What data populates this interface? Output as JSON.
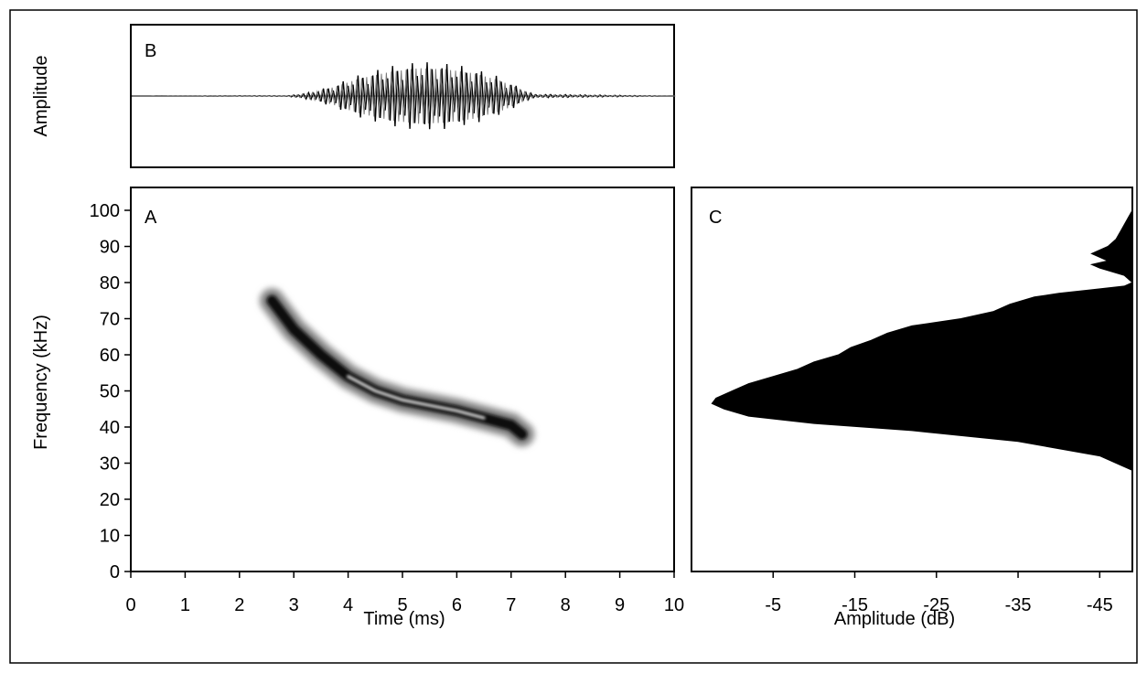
{
  "chart_data": [
    {
      "panel": "B",
      "type": "line",
      "title": "",
      "xlabel": "",
      "ylabel": "Amplitude",
      "xlim": [
        0,
        10
      ],
      "envelope": {
        "x": [
          0,
          2.9,
          3.3,
          3.7,
          4.2,
          4.8,
          5.3,
          5.8,
          6.3,
          6.8,
          7.1,
          7.4,
          10
        ],
        "amp": [
          0,
          0.01,
          0.1,
          0.3,
          0.62,
          0.88,
          1.0,
          0.96,
          0.82,
          0.55,
          0.3,
          0.05,
          0
        ]
      }
    },
    {
      "panel": "A",
      "type": "heatmap",
      "title": "",
      "xlabel": "Time (ms)",
      "ylabel": "Frequency (kHz)",
      "xlim": [
        0,
        10
      ],
      "ylim": [
        0,
        100
      ],
      "x_ticks": [
        "0",
        "1",
        "2",
        "3",
        "4",
        "5",
        "6",
        "7",
        "8",
        "9",
        "10"
      ],
      "y_ticks": [
        "0",
        "10",
        "20",
        "30",
        "40",
        "50",
        "60",
        "70",
        "80",
        "90",
        "100"
      ],
      "ridge": {
        "time_ms": [
          2.6,
          3.0,
          3.5,
          4.0,
          4.5,
          5.0,
          5.5,
          6.0,
          6.5,
          7.0,
          7.2
        ],
        "freq_khz": [
          75,
          67,
          60,
          54,
          50,
          47.5,
          46,
          44.5,
          42.5,
          40.5,
          38
        ]
      }
    },
    {
      "panel": "C",
      "type": "area",
      "title": "",
      "xlabel": "Amplitude (dB)",
      "ylabel": "",
      "xlim": [
        5,
        -49
      ],
      "ylim": [
        0,
        100
      ],
      "x_ticks": [
        "-5",
        "-15",
        "-25",
        "-35",
        "-45"
      ],
      "spectrum": {
        "freq_khz": [
          28,
          32,
          36,
          39,
          41,
          43,
          45,
          46.5,
          48,
          50,
          52,
          54,
          56,
          58,
          60,
          62,
          64,
          66,
          68,
          70,
          72,
          74,
          76,
          77,
          78,
          79,
          80,
          82,
          84,
          85,
          86,
          88,
          90,
          92,
          94,
          96,
          98,
          100
        ],
        "amp_db": [
          -49,
          -45,
          -35,
          -22,
          -10,
          -2,
          1,
          2.5,
          2,
          0,
          -2,
          -5,
          -8,
          -10,
          -13,
          -14.5,
          -17,
          -19,
          -22,
          -28,
          -32,
          -34,
          -37,
          -40,
          -44,
          -48,
          -49,
          -48,
          -45,
          -44,
          -46,
          -44,
          -46,
          -47,
          -47.5,
          -48,
          -48.5,
          -49
        ]
      }
    }
  ],
  "panels": {
    "a": {
      "label": "A"
    },
    "b": {
      "label": "B"
    },
    "c": {
      "label": "C"
    }
  }
}
